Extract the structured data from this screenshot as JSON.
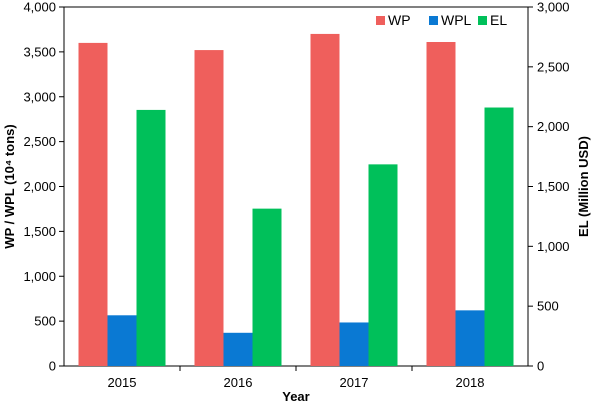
{
  "chart_data": {
    "type": "bar",
    "categories": [
      "2015",
      "2016",
      "2017",
      "2018"
    ],
    "series": [
      {
        "name": "WP",
        "axis": "left",
        "color": "#ef5f5c",
        "values": [
          3600,
          3520,
          3700,
          3610
        ]
      },
      {
        "name": "WPL",
        "axis": "left",
        "color": "#0a79d3",
        "values": [
          565,
          370,
          485,
          620
        ]
      },
      {
        "name": "EL",
        "axis": "right",
        "color": "#00c05a",
        "values": [
          2140,
          1315,
          1685,
          2160
        ]
      }
    ],
    "xlabel": "Year",
    "ylabel_left": "WP / WPL (10⁴ tons)",
    "ylabel_right": "EL (Million USD)",
    "ylim_left": [
      0,
      4000
    ],
    "ylim_right": [
      0,
      3000
    ],
    "yticks_left": [
      "0",
      "500",
      "1,000",
      "1,500",
      "2,000",
      "2,500",
      "3,000",
      "3,500",
      "4,000"
    ],
    "yticks_right": [
      "0",
      "500",
      "1,000",
      "1,500",
      "2,000",
      "2,500",
      "3,000"
    ],
    "legend_position": "top-right",
    "grid": false
  }
}
